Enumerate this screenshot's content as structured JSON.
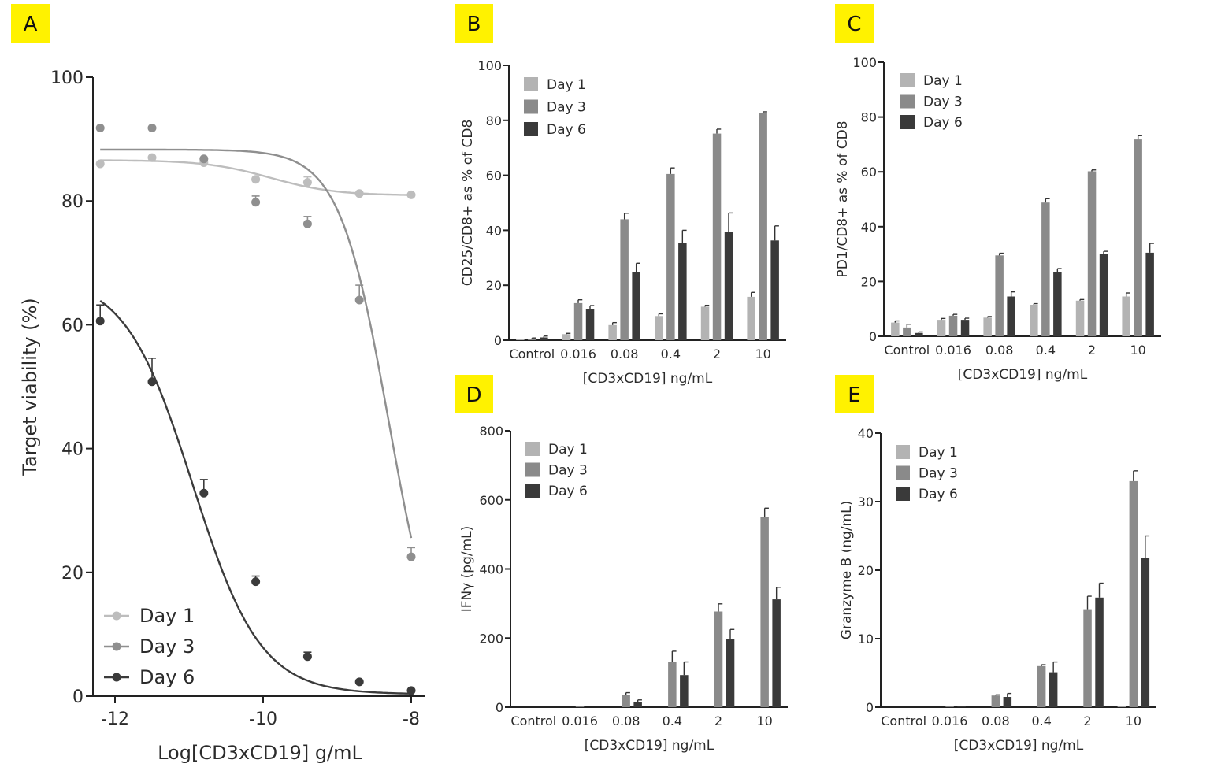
{
  "colors": {
    "day1": "#b3b3b3",
    "day3": "#8a8a8a",
    "day6": "#3a3a3a",
    "dose_day1": "#bdbdbd",
    "dose_day3": "#8f8f8f",
    "dose_day6": "#3b3b3b",
    "label_bg": "#fff200"
  },
  "chart_data": [
    {
      "panel": "A",
      "type": "scatter",
      "xlabel": "Log[CD3xCD19] g/mL",
      "ylabel": "Target viability (%)",
      "xlim": [
        -12.3,
        -7.9
      ],
      "ylim": [
        0,
        100
      ],
      "xticks": [
        -12,
        -10,
        -8
      ],
      "yticks": [
        0,
        20,
        40,
        60,
        80,
        100
      ],
      "legend_position": "bottom-left",
      "series": [
        {
          "name": "Day 1",
          "color_key": "dose_day1",
          "x": [
            -12.2,
            -11.5,
            -10.8,
            -10.1,
            -9.4,
            -8.7,
            -8.0
          ],
          "y": [
            86.0,
            87.0,
            86.2,
            83.5,
            83.0,
            81.2,
            81.0
          ],
          "err": [
            0,
            0,
            0,
            0,
            0.9,
            0,
            0
          ],
          "fit": {
            "top": 86.6,
            "bottom": 80.9,
            "logec50": -9.9,
            "hill": -1.0
          }
        },
        {
          "name": "Day 3",
          "color_key": "dose_day3",
          "x": [
            -12.2,
            -11.5,
            -10.8,
            -10.1,
            -9.4,
            -8.7,
            -8.0
          ],
          "y": [
            91.8,
            91.8,
            86.8,
            79.8,
            76.3,
            64.0,
            22.5
          ],
          "err": [
            0,
            0,
            0,
            1.0,
            1.2,
            2.4,
            1.5
          ],
          "fit": {
            "top": 88.3,
            "bottom": 0,
            "logec50": -8.3,
            "hill": -1.3
          }
        },
        {
          "name": "Day 6",
          "color_key": "dose_day6",
          "x": [
            -12.2,
            -11.5,
            -10.8,
            -10.1,
            -9.4,
            -8.7,
            -8.0
          ],
          "y": [
            60.6,
            50.8,
            32.8,
            18.5,
            6.4,
            2.3,
            0.9
          ],
          "err": [
            2.6,
            3.8,
            2.2,
            0.9,
            0.7,
            0.3,
            0
          ],
          "fit": {
            "top": 68.0,
            "bottom": 0.3,
            "logec50": -10.95,
            "hill": -0.95
          }
        }
      ]
    },
    {
      "panel": "B",
      "type": "bar",
      "categories": [
        "Control",
        "0.016",
        "0.08",
        "0.4",
        "2",
        "10"
      ],
      "xlabel": "[CD3xCD19] ng/mL",
      "ylabel": "CD25/CD8+ as % of CD8",
      "ylim": [
        0,
        100
      ],
      "yticks": [
        0,
        20,
        40,
        60,
        80,
        100
      ],
      "legend_position": "top-left",
      "series": [
        {
          "name": "Day 1",
          "color_key": "day1",
          "values": [
            0.3,
            2.2,
            5.5,
            8.8,
            12.2,
            15.8
          ],
          "err": [
            0,
            0.3,
            0.9,
            0.8,
            0.5,
            1.6
          ]
        },
        {
          "name": "Day 3",
          "color_key": "day3",
          "values": [
            0.5,
            13.5,
            44.0,
            60.5,
            75.2,
            82.8
          ],
          "err": [
            0.3,
            1.2,
            2.2,
            2.2,
            1.6,
            0.3
          ]
        },
        {
          "name": "Day 6",
          "color_key": "day6",
          "values": [
            1.0,
            11.3,
            24.8,
            35.5,
            39.3,
            36.3
          ],
          "err": [
            0.5,
            1.3,
            3.2,
            4.5,
            7.0,
            5.3
          ]
        }
      ]
    },
    {
      "panel": "C",
      "type": "bar",
      "categories": [
        "Control",
        "0.016",
        "0.08",
        "0.4",
        "2",
        "10"
      ],
      "xlabel": "[CD3xCD19] ng/mL",
      "ylabel": "PD1/CD8+ as % of CD8",
      "ylim": [
        0,
        100
      ],
      "yticks": [
        0,
        20,
        40,
        60,
        80,
        100
      ],
      "legend_position": "top-left",
      "series": [
        {
          "name": "Day 1",
          "color_key": "day1",
          "values": [
            5.0,
            6.0,
            6.8,
            11.5,
            13.0,
            14.5
          ],
          "err": [
            0.6,
            0.5,
            0.4,
            0.4,
            0.4,
            1.3
          ]
        },
        {
          "name": "Day 3",
          "color_key": "day3",
          "values": [
            3.2,
            7.5,
            29.5,
            48.8,
            60.2,
            71.8
          ],
          "err": [
            1.2,
            0.5,
            0.8,
            1.4,
            0.5,
            1.4
          ]
        },
        {
          "name": "Day 6",
          "color_key": "day6",
          "values": [
            1.2,
            6.0,
            14.5,
            23.5,
            30.0,
            30.5
          ],
          "err": [
            0.4,
            0.6,
            1.7,
            1.2,
            1.0,
            3.4
          ]
        }
      ]
    },
    {
      "panel": "D",
      "type": "bar",
      "categories": [
        "Control",
        "0.016",
        "0.08",
        "0.4",
        "2",
        "10"
      ],
      "xlabel": "[CD3xCD19] ng/mL",
      "ylabel": "IFNγ (pg/mL)",
      "ylim": [
        0,
        800
      ],
      "yticks": [
        0,
        200,
        400,
        600,
        800
      ],
      "legend_position": "top-left",
      "series": [
        {
          "name": "Day 1",
          "color_key": "day1",
          "values": [
            0,
            0,
            0,
            0,
            0,
            0
          ],
          "err": [
            0,
            0,
            0,
            0,
            0,
            0
          ]
        },
        {
          "name": "Day 3",
          "color_key": "day3",
          "values": [
            0,
            2,
            35,
            132,
            277,
            550
          ],
          "err": [
            0,
            0,
            7,
            30,
            22,
            26
          ]
        },
        {
          "name": "Day 6",
          "color_key": "day6",
          "values": [
            0,
            0,
            15,
            93,
            197,
            312
          ],
          "err": [
            0,
            0,
            6,
            38,
            28,
            35
          ]
        }
      ]
    },
    {
      "panel": "E",
      "type": "bar",
      "categories": [
        "Control",
        "0.016",
        "0.08",
        "0.4",
        "2",
        "10"
      ],
      "xlabel": "[CD3xCD19] ng/mL",
      "ylabel": "Granzyme B (ng/mL)",
      "ylim": [
        0,
        40
      ],
      "yticks": [
        0,
        10,
        20,
        30,
        40
      ],
      "legend_position": "top-left",
      "series": [
        {
          "name": "Day 1",
          "color_key": "day1",
          "values": [
            0,
            0,
            0,
            0,
            0,
            0.1
          ],
          "err": [
            0,
            0,
            0,
            0,
            0,
            0
          ]
        },
        {
          "name": "Day 3",
          "color_key": "day3",
          "values": [
            0,
            0.1,
            1.7,
            6.0,
            14.3,
            33.0
          ],
          "err": [
            0,
            0,
            0.1,
            0.2,
            1.9,
            1.5
          ]
        },
        {
          "name": "Day 6",
          "color_key": "day6",
          "values": [
            0,
            0.1,
            1.5,
            5.1,
            16.0,
            21.8
          ],
          "err": [
            0,
            0,
            0.5,
            1.5,
            2.1,
            3.2
          ]
        }
      ]
    }
  ]
}
